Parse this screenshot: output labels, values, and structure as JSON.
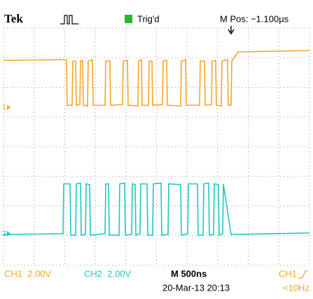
{
  "header": {
    "logo": "Tek",
    "trigger_status": "Trig'd",
    "position": "M Pos: −1.100µs"
  },
  "markers": {
    "ch1": "1",
    "ch2": "2"
  },
  "footer": {
    "ch1_scale": "CH1  2.00V",
    "ch2_scale": "CH2  2.00V",
    "timebase": "M 500ns",
    "trigger_source": "CH1",
    "date": "20-Mar-13 20:13",
    "frequency": "<10Hz"
  }
}
